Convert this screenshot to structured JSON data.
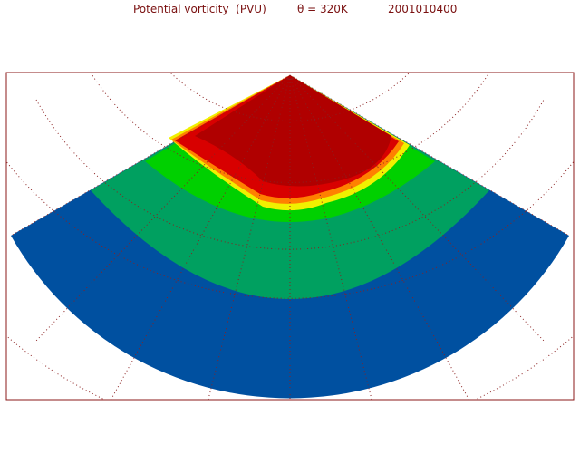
{
  "title": {
    "field": "Potential vorticity  (PVU)",
    "level": "θ = 320K",
    "time": "2001010400"
  }
}
